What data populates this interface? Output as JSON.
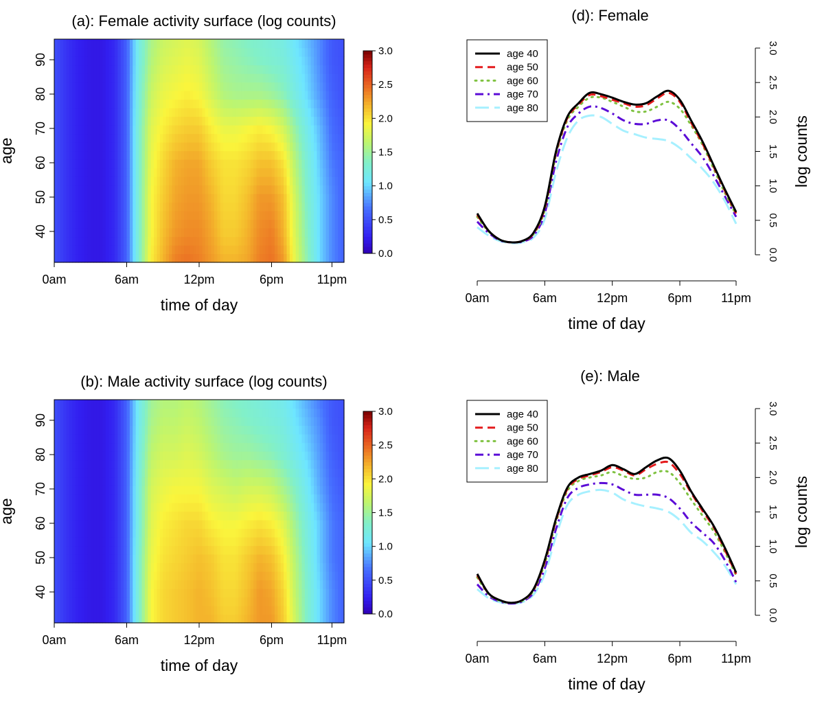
{
  "chart_data": [
    {
      "id": "a",
      "type": "heatmap",
      "title": "(a): Female activity surface (log counts)",
      "xlabel": "time of day",
      "ylabel": "age",
      "x_ticks": [
        "0am",
        "6am",
        "12pm",
        "6pm",
        "11pm"
      ],
      "x_tick_hours": [
        0,
        6,
        12,
        18,
        23
      ],
      "xlim": [
        0,
        24
      ],
      "y_ticks": [
        40,
        50,
        60,
        70,
        80,
        90
      ],
      "ylim": [
        31,
        96
      ],
      "colorbar": {
        "range": [
          0,
          3
        ],
        "ticks": [
          "0.0",
          "0.5",
          "1.0",
          "1.5",
          "2.0",
          "2.5",
          "3.0"
        ]
      },
      "value_grid": {
        "hours": [
          0,
          1,
          2,
          3,
          4,
          5,
          6,
          7,
          8,
          9,
          10,
          11,
          12,
          13,
          14,
          15,
          16,
          17,
          18,
          19,
          20,
          21,
          22,
          23,
          24
        ],
        "ages": [
          31,
          40,
          50,
          60,
          70,
          80,
          90,
          96
        ],
        "rows": [
          [
            0.5,
            0.35,
            0.25,
            0.2,
            0.2,
            0.3,
            0.6,
            1.3,
            1.95,
            2.2,
            2.4,
            2.45,
            2.4,
            2.3,
            2.2,
            2.2,
            2.25,
            2.4,
            2.45,
            2.3,
            1.8,
            1.4,
            1.0,
            0.75,
            0.6
          ],
          [
            0.5,
            0.35,
            0.25,
            0.2,
            0.2,
            0.3,
            0.6,
            1.3,
            1.9,
            2.15,
            2.3,
            2.35,
            2.35,
            2.25,
            2.1,
            2.1,
            2.2,
            2.35,
            2.4,
            2.2,
            1.75,
            1.35,
            1.0,
            0.75,
            0.6
          ],
          [
            0.5,
            0.35,
            0.25,
            0.2,
            0.2,
            0.3,
            0.6,
            1.3,
            1.9,
            2.1,
            2.25,
            2.3,
            2.3,
            2.2,
            2.05,
            2.05,
            2.15,
            2.3,
            2.3,
            2.15,
            1.7,
            1.3,
            1.0,
            0.75,
            0.6
          ],
          [
            0.5,
            0.35,
            0.25,
            0.2,
            0.2,
            0.3,
            0.6,
            1.3,
            1.85,
            2.05,
            2.2,
            2.25,
            2.25,
            2.1,
            2.0,
            2.0,
            2.05,
            2.15,
            2.15,
            2.0,
            1.6,
            1.25,
            0.95,
            0.7,
            0.6
          ],
          [
            0.5,
            0.35,
            0.25,
            0.2,
            0.2,
            0.3,
            0.6,
            1.3,
            1.8,
            1.95,
            2.05,
            2.1,
            2.1,
            1.95,
            1.85,
            1.85,
            1.9,
            1.95,
            1.9,
            1.75,
            1.45,
            1.15,
            0.9,
            0.65,
            0.55
          ],
          [
            0.5,
            0.35,
            0.25,
            0.2,
            0.2,
            0.3,
            0.6,
            1.25,
            1.7,
            1.85,
            1.9,
            1.95,
            1.9,
            1.75,
            1.6,
            1.55,
            1.55,
            1.55,
            1.5,
            1.4,
            1.2,
            1.0,
            0.8,
            0.6,
            0.5
          ],
          [
            0.5,
            0.35,
            0.25,
            0.2,
            0.2,
            0.3,
            0.6,
            1.2,
            1.6,
            1.75,
            1.8,
            1.85,
            1.8,
            1.65,
            1.5,
            1.45,
            1.4,
            1.35,
            1.3,
            1.25,
            1.1,
            0.95,
            0.75,
            0.55,
            0.5
          ],
          [
            0.5,
            0.35,
            0.25,
            0.2,
            0.2,
            0.3,
            0.6,
            1.2,
            1.55,
            1.7,
            1.75,
            1.8,
            1.75,
            1.6,
            1.45,
            1.4,
            1.35,
            1.3,
            1.25,
            1.2,
            1.05,
            0.9,
            0.75,
            0.55,
            0.5
          ]
        ]
      }
    },
    {
      "id": "b",
      "type": "heatmap",
      "title": "(b): Male activity surface (log counts)",
      "xlabel": "time of day",
      "ylabel": "age",
      "x_ticks": [
        "0am",
        "6am",
        "12pm",
        "6pm",
        "11pm"
      ],
      "x_tick_hours": [
        0,
        6,
        12,
        18,
        23
      ],
      "xlim": [
        0,
        24
      ],
      "y_ticks": [
        40,
        50,
        60,
        70,
        80,
        90
      ],
      "ylim": [
        31,
        96
      ],
      "colorbar": {
        "range": [
          0,
          3
        ],
        "ticks": [
          "0.0",
          "0.5",
          "1.0",
          "1.5",
          "2.0",
          "2.5",
          "3.0"
        ]
      },
      "value_grid": {
        "hours": [
          0,
          1,
          2,
          3,
          4,
          5,
          6,
          7,
          8,
          9,
          10,
          11,
          12,
          13,
          14,
          15,
          16,
          17,
          18,
          19,
          20,
          21,
          22,
          23,
          24
        ],
        "ages": [
          31,
          40,
          50,
          60,
          70,
          80,
          90,
          96
        ],
        "rows": [
          [
            0.5,
            0.35,
            0.25,
            0.2,
            0.2,
            0.3,
            0.6,
            1.3,
            1.9,
            2.05,
            2.1,
            2.15,
            2.2,
            2.2,
            2.1,
            2.1,
            2.2,
            2.3,
            2.3,
            2.1,
            1.7,
            1.3,
            1.0,
            0.75,
            0.6
          ],
          [
            0.5,
            0.35,
            0.25,
            0.2,
            0.2,
            0.3,
            0.6,
            1.3,
            1.9,
            2.05,
            2.1,
            2.15,
            2.2,
            2.15,
            2.05,
            2.05,
            2.15,
            2.3,
            2.25,
            2.05,
            1.65,
            1.3,
            1.0,
            0.75,
            0.6
          ],
          [
            0.5,
            0.35,
            0.25,
            0.2,
            0.2,
            0.3,
            0.6,
            1.3,
            1.85,
            2.0,
            2.05,
            2.1,
            2.15,
            2.1,
            2.0,
            2.0,
            2.1,
            2.2,
            2.15,
            1.95,
            1.6,
            1.25,
            0.95,
            0.7,
            0.6
          ],
          [
            0.5,
            0.35,
            0.25,
            0.2,
            0.2,
            0.3,
            0.6,
            1.25,
            1.8,
            1.95,
            2.0,
            2.05,
            2.05,
            1.95,
            1.9,
            1.9,
            1.95,
            2.0,
            1.95,
            1.8,
            1.5,
            1.2,
            0.95,
            0.7,
            0.6
          ],
          [
            0.5,
            0.35,
            0.25,
            0.2,
            0.2,
            0.3,
            0.6,
            1.25,
            1.75,
            1.85,
            1.9,
            1.9,
            1.9,
            1.8,
            1.75,
            1.7,
            1.75,
            1.75,
            1.7,
            1.55,
            1.35,
            1.1,
            0.85,
            0.65,
            0.55
          ],
          [
            0.5,
            0.35,
            0.25,
            0.2,
            0.2,
            0.3,
            0.6,
            1.2,
            1.65,
            1.75,
            1.75,
            1.8,
            1.75,
            1.65,
            1.55,
            1.5,
            1.5,
            1.45,
            1.4,
            1.3,
            1.15,
            1.0,
            0.8,
            0.6,
            0.5
          ],
          [
            0.5,
            0.35,
            0.25,
            0.2,
            0.2,
            0.3,
            0.6,
            1.15,
            1.55,
            1.65,
            1.65,
            1.7,
            1.65,
            1.55,
            1.45,
            1.4,
            1.35,
            1.3,
            1.25,
            1.2,
            1.05,
            0.9,
            0.75,
            0.55,
            0.5
          ],
          [
            0.5,
            0.35,
            0.25,
            0.2,
            0.2,
            0.3,
            0.6,
            1.15,
            1.5,
            1.6,
            1.6,
            1.65,
            1.6,
            1.5,
            1.4,
            1.35,
            1.3,
            1.25,
            1.2,
            1.15,
            1.0,
            0.85,
            0.7,
            0.55,
            0.5
          ]
        ]
      }
    },
    {
      "id": "d",
      "type": "line",
      "title": "(d): Female",
      "xlabel": "time of day",
      "ylabel": "log  counts",
      "x_ticks": [
        "0am",
        "6am",
        "12pm",
        "6pm",
        "11pm"
      ],
      "x_tick_hours": [
        0,
        6,
        12,
        18,
        23
      ],
      "xlim": [
        0,
        23
      ],
      "ylim": [
        0,
        3
      ],
      "y_ticks": [
        "0.0",
        "0.5",
        "1.0",
        "1.5",
        "2.0",
        "2.5",
        "3.0"
      ],
      "legend": "top-left",
      "x": [
        0,
        1,
        2,
        3,
        4,
        5,
        6,
        7,
        8,
        9,
        10,
        11,
        12,
        13,
        14,
        15,
        16,
        17,
        18,
        19,
        20,
        21,
        22,
        23
      ],
      "series": [
        {
          "name": "age 40",
          "color": "#000000",
          "style": "solid",
          "values": [
            0.6,
            0.35,
            0.22,
            0.18,
            0.2,
            0.32,
            0.7,
            1.5,
            2.0,
            2.2,
            2.35,
            2.33,
            2.28,
            2.22,
            2.18,
            2.2,
            2.3,
            2.38,
            2.25,
            1.95,
            1.65,
            1.3,
            0.95,
            0.62
          ]
        },
        {
          "name": "age 50",
          "color": "#e41a1c",
          "style": "dashed",
          "values": [
            0.58,
            0.35,
            0.22,
            0.18,
            0.2,
            0.31,
            0.68,
            1.48,
            1.98,
            2.18,
            2.32,
            2.3,
            2.25,
            2.2,
            2.15,
            2.17,
            2.27,
            2.35,
            2.22,
            1.92,
            1.62,
            1.28,
            0.93,
            0.6
          ]
        },
        {
          "name": "age 60",
          "color": "#7fc241",
          "style": "dotted",
          "values": [
            0.55,
            0.34,
            0.22,
            0.18,
            0.2,
            0.3,
            0.65,
            1.45,
            1.95,
            2.15,
            2.28,
            2.28,
            2.22,
            2.15,
            2.08,
            2.08,
            2.15,
            2.22,
            2.12,
            1.88,
            1.6,
            1.25,
            0.9,
            0.58
          ]
        },
        {
          "name": "age 70",
          "color": "#5b0bd6",
          "style": "dashdot",
          "values": [
            0.48,
            0.32,
            0.21,
            0.18,
            0.19,
            0.28,
            0.6,
            1.35,
            1.85,
            2.05,
            2.15,
            2.13,
            2.05,
            1.95,
            1.9,
            1.9,
            1.95,
            1.95,
            1.82,
            1.62,
            1.42,
            1.15,
            0.85,
            0.55
          ]
        },
        {
          "name": "age 80",
          "color": "#a6f0ff",
          "style": "longdash",
          "values": [
            0.4,
            0.28,
            0.2,
            0.17,
            0.18,
            0.25,
            0.52,
            1.2,
            1.7,
            1.95,
            2.02,
            2.0,
            1.9,
            1.8,
            1.75,
            1.7,
            1.68,
            1.65,
            1.55,
            1.4,
            1.25,
            1.05,
            0.78,
            0.45
          ]
        }
      ]
    },
    {
      "id": "e",
      "type": "line",
      "title": "(e): Male",
      "xlabel": "time of day",
      "ylabel": "log  counts",
      "x_ticks": [
        "0am",
        "6am",
        "12pm",
        "6pm",
        "11pm"
      ],
      "x_tick_hours": [
        0,
        6,
        12,
        18,
        23
      ],
      "xlim": [
        0,
        23
      ],
      "ylim": [
        0,
        3
      ],
      "y_ticks": [
        "0.0",
        "0.5",
        "1.0",
        "1.5",
        "2.0",
        "2.5",
        "3.0"
      ],
      "legend": "top-left",
      "x": [
        0,
        1,
        2,
        3,
        4,
        5,
        6,
        7,
        8,
        9,
        10,
        11,
        12,
        13,
        14,
        15,
        16,
        17,
        18,
        19,
        20,
        21,
        22,
        23
      ],
      "series": [
        {
          "name": "age 40",
          "color": "#000000",
          "style": "solid",
          "values": [
            0.6,
            0.32,
            0.22,
            0.18,
            0.22,
            0.38,
            0.8,
            1.4,
            1.85,
            2.0,
            2.05,
            2.1,
            2.18,
            2.12,
            2.05,
            2.15,
            2.25,
            2.28,
            2.1,
            1.8,
            1.55,
            1.3,
            0.98,
            0.62
          ]
        },
        {
          "name": "age 50",
          "color": "#e41a1c",
          "style": "dashed",
          "values": [
            0.58,
            0.32,
            0.22,
            0.18,
            0.22,
            0.37,
            0.78,
            1.38,
            1.83,
            1.98,
            2.03,
            2.08,
            2.15,
            2.1,
            2.03,
            2.12,
            2.2,
            2.22,
            2.05,
            1.78,
            1.52,
            1.28,
            0.95,
            0.6
          ]
        },
        {
          "name": "age 60",
          "color": "#7fc241",
          "style": "dotted",
          "values": [
            0.55,
            0.31,
            0.21,
            0.18,
            0.21,
            0.36,
            0.75,
            1.35,
            1.8,
            1.95,
            2.0,
            2.03,
            2.08,
            2.02,
            1.98,
            2.0,
            2.08,
            2.08,
            1.92,
            1.68,
            1.45,
            1.22,
            0.92,
            0.58
          ]
        },
        {
          "name": "age 70",
          "color": "#5b0bd6",
          "style": "dashdot",
          "values": [
            0.45,
            0.28,
            0.2,
            0.17,
            0.2,
            0.33,
            0.68,
            1.25,
            1.7,
            1.85,
            1.9,
            1.92,
            1.9,
            1.82,
            1.75,
            1.75,
            1.75,
            1.7,
            1.55,
            1.35,
            1.2,
            1.05,
            0.8,
            0.48
          ]
        },
        {
          "name": "age 80",
          "color": "#a6f0ff",
          "style": "longdash",
          "values": [
            0.38,
            0.25,
            0.19,
            0.17,
            0.19,
            0.3,
            0.6,
            1.15,
            1.6,
            1.75,
            1.8,
            1.82,
            1.78,
            1.68,
            1.62,
            1.58,
            1.55,
            1.5,
            1.38,
            1.2,
            1.08,
            0.92,
            0.72,
            0.45
          ]
        }
      ]
    }
  ]
}
